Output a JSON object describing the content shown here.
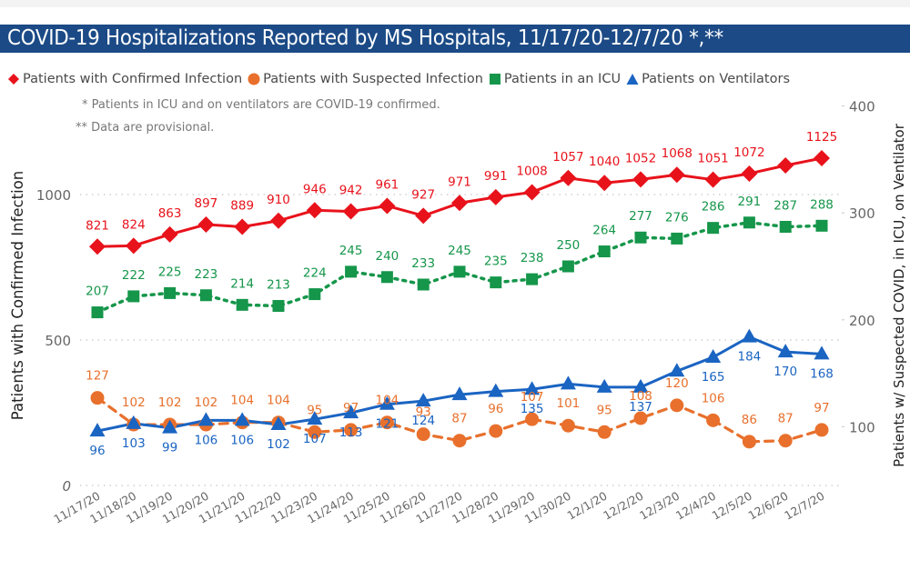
{
  "title": "COVID-19 Hospitalizations Reported by MS Hospitals, 11/17/20-12/7/20 *,**",
  "notes": [
    "* Patients in ICU and on ventilators are COVID-19 confirmed.",
    "** Data are provisional."
  ],
  "colors": {
    "title_bg": "#1b4a86",
    "confirmed": "#e8121b",
    "suspected": "#e8702c",
    "icu": "#15964a",
    "ventilators": "#1a64c2",
    "gridline": "#c8c8c8",
    "axis_text": "#666666"
  },
  "chart_data": {
    "type": "line",
    "title": "COVID-19 Hospitalizations Reported by MS Hospitals, 11/17/20-12/7/20 *,**",
    "xlabel": "",
    "ylabel": "Patients with Confirmed Infection",
    "y2label": "Patients w/ Suspected COVID, in ICU, on Ventilator",
    "ylim": [
      0,
      1150
    ],
    "y2lim": [
      45,
      400
    ],
    "yticks": [
      0,
      500,
      1000
    ],
    "y2ticks": [
      100,
      200,
      300,
      400
    ],
    "grid": true,
    "legend_position": "top",
    "categories": [
      "11/17/20",
      "11/18/20",
      "11/19/20",
      "11/20/20",
      "11/21/20",
      "11/22/20",
      "11/23/20",
      "11/24/20",
      "11/25/20",
      "11/26/20",
      "11/27/20",
      "11/28/20",
      "11/29/20",
      "11/30/20",
      "12/1/20",
      "12/2/20",
      "12/3/20",
      "12/4/20",
      "12/5/20",
      "12/6/20",
      "12/7/20"
    ],
    "series": [
      {
        "name": "Patients with Confirmed Infection",
        "axis": "left",
        "marker": "diamond",
        "line_style": "solid",
        "values": [
          821,
          824,
          863,
          897,
          889,
          910,
          946,
          942,
          961,
          927,
          971,
          991,
          1008,
          1057,
          1040,
          1052,
          1068,
          1051,
          1072,
          1100,
          1125
        ],
        "labels": [
          "821",
          "824",
          "863",
          "897",
          "889",
          "910",
          "946",
          "942",
          "961",
          "927",
          "971",
          "991",
          "1008",
          "1057",
          "1040",
          "1052",
          "1068",
          "1051",
          "1072",
          "",
          "1125"
        ]
      },
      {
        "name": "Patients with Suspected Infection",
        "axis": "right",
        "marker": "circle",
        "line_style": "dashed",
        "values": [
          127,
          102,
          102,
          102,
          104,
          104,
          95,
          97,
          104,
          93,
          87,
          96,
          107,
          101,
          95,
          108,
          120,
          106,
          86,
          87,
          97
        ],
        "labels": [
          "127",
          "102",
          "102",
          "102",
          "104",
          "104",
          "95",
          "97",
          "104",
          "93",
          "87",
          "96",
          "107",
          "101",
          "95",
          "108",
          "120",
          "106",
          "86",
          "87",
          "97"
        ]
      },
      {
        "name": "Patients in an ICU",
        "axis": "right",
        "marker": "square",
        "line_style": "dotted",
        "values": [
          207,
          222,
          225,
          223,
          214,
          213,
          224,
          245,
          240,
          233,
          245,
          235,
          238,
          250,
          264,
          277,
          276,
          286,
          291,
          287,
          288
        ],
        "labels": [
          "207",
          "222",
          "225",
          "223",
          "214",
          "213",
          "224",
          "245",
          "240",
          "233",
          "245",
          "235",
          "238",
          "250",
          "264",
          "277",
          "276",
          "286",
          "291",
          "287",
          "288"
        ]
      },
      {
        "name": "Patients on Ventilators",
        "axis": "right",
        "marker": "triangle",
        "line_style": "solid",
        "values": [
          96,
          103,
          99,
          106,
          106,
          102,
          107,
          113,
          121,
          124,
          130,
          133,
          135,
          140,
          137,
          137,
          152,
          165,
          184,
          170,
          168
        ],
        "labels": [
          "96",
          "103",
          "99",
          "106",
          "106",
          "102",
          "107",
          "113",
          "121",
          "124",
          "",
          "",
          "135",
          "",
          "",
          "137",
          "",
          "165",
          "184",
          "170",
          "168"
        ]
      }
    ]
  }
}
